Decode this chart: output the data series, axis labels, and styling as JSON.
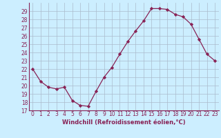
{
  "x": [
    0,
    1,
    2,
    3,
    4,
    5,
    6,
    7,
    8,
    9,
    10,
    11,
    12,
    13,
    14,
    15,
    16,
    17,
    18,
    19,
    20,
    21,
    22,
    23
  ],
  "y": [
    22,
    20.5,
    19.8,
    19.6,
    19.8,
    18.2,
    17.6,
    17.5,
    19.3,
    21.0,
    22.2,
    23.8,
    25.3,
    26.6,
    27.8,
    29.3,
    29.3,
    29.2,
    28.6,
    28.3,
    27.4,
    25.6,
    23.8,
    23.0
  ],
  "line_color": "#882255",
  "marker": "D",
  "marker_size": 2.2,
  "bg_color": "#cceeff",
  "grid_color": "#aabbcc",
  "xlabel": "Windchill (Refroidissement éolien,°C)",
  "xlabel_color": "#882255",
  "tick_color": "#882255",
  "ylim": [
    17,
    30
  ],
  "xlim": [
    -0.5,
    23.5
  ],
  "yticks": [
    17,
    18,
    19,
    20,
    21,
    22,
    23,
    24,
    25,
    26,
    27,
    28,
    29
  ],
  "xticks": [
    0,
    1,
    2,
    3,
    4,
    5,
    6,
    7,
    8,
    9,
    10,
    11,
    12,
    13,
    14,
    15,
    16,
    17,
    18,
    19,
    20,
    21,
    22,
    23
  ],
  "tick_fontsize": 5.5,
  "xlabel_fontsize": 6.0
}
